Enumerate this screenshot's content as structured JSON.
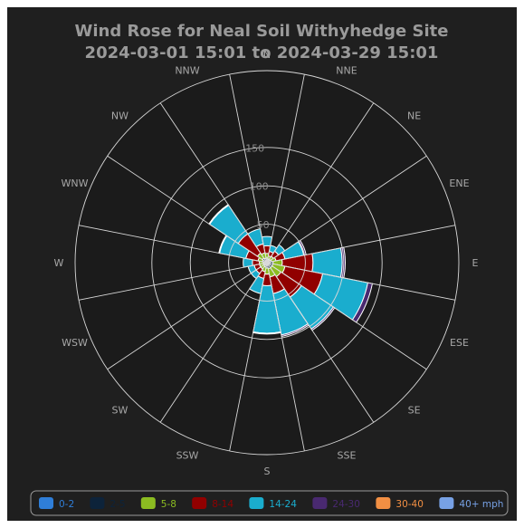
{
  "chart_data": {
    "type": "windrose",
    "title": "Wind Rose for Neal Soil Withyhedge Site",
    "subtitle": "2024-03-01 15:01 to 2024-03-29 15:01",
    "directions": [
      "N",
      "NNE",
      "NE",
      "ENE",
      "E",
      "ESE",
      "SE",
      "SSE",
      "S",
      "SSW",
      "SW",
      "WSW",
      "W",
      "WNW",
      "NW",
      "NNW"
    ],
    "radial_ticks": [
      50,
      100,
      150
    ],
    "radial_max": 250,
    "legend_position": "bottom",
    "series": [
      {
        "name": "0-2",
        "color": "#2f7ed8",
        "values": [
          2,
          2,
          2,
          2,
          2,
          2,
          2,
          2,
          2,
          2,
          2,
          2,
          2,
          2,
          2,
          2
        ]
      },
      {
        "name": "2-5",
        "color": "#0d233a",
        "values": [
          4,
          3,
          3,
          4,
          6,
          6,
          6,
          6,
          5,
          4,
          3,
          3,
          3,
          4,
          5,
          4
        ]
      },
      {
        "name": "5-8",
        "color": "#8bbc21",
        "values": [
          6,
          4,
          5,
          6,
          12,
          16,
          14,
          11,
          8,
          6,
          5,
          5,
          5,
          6,
          8,
          7
        ]
      },
      {
        "name": "8-14",
        "color": "#910000",
        "values": [
          10,
          6,
          8,
          12,
          40,
          50,
          32,
          22,
          15,
          9,
          7,
          7,
          9,
          16,
          30,
          12
        ]
      },
      {
        "name": "14-24",
        "color": "#1aadce",
        "values": [
          12,
          8,
          10,
          25,
          38,
          60,
          50,
          55,
          62,
          20,
          8,
          8,
          12,
          35,
          45,
          20
        ]
      },
      {
        "name": "24-30",
        "color": "#492970",
        "values": [
          0,
          0,
          0,
          3,
          4,
          6,
          2,
          2,
          1,
          0,
          0,
          0,
          0,
          1,
          1,
          0
        ]
      },
      {
        "name": "30-40",
        "color": "#f28f43",
        "values": [
          0,
          0,
          0,
          0,
          0,
          0,
          0,
          0,
          0,
          0,
          0,
          0,
          0,
          0,
          0,
          0
        ]
      },
      {
        "name": "40+ mph",
        "color": "#77a1e5",
        "values": [
          0,
          0,
          0,
          0,
          0,
          0,
          0,
          0,
          0,
          0,
          0,
          0,
          0,
          0,
          0,
          0
        ]
      }
    ]
  }
}
